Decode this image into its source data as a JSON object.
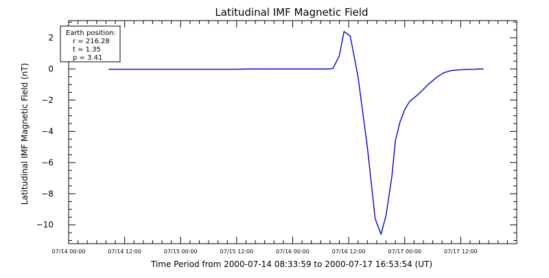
{
  "chart_data": {
    "type": "line",
    "title": "Latitudinal IMF Magnetic Field",
    "xlabel": "Time Period from 2000-07-14 08:33:59 to 2000-07-17 16:53:54 (UT)",
    "ylabel": "Latitudinal IMF Magnetic Field (nT)",
    "xlim": [
      "2000-07-14T00:00",
      "2000-07-18T00:00"
    ],
    "ylim": [
      -11.2,
      3.1
    ],
    "x_ticks": [
      {
        "t": "2000-07-14T00:00",
        "label": "07/14 00:00"
      },
      {
        "t": "2000-07-14T12:00",
        "label": "07/14 12:00"
      },
      {
        "t": "2000-07-15T00:00",
        "label": "07/15 00:00"
      },
      {
        "t": "2000-07-15T12:00",
        "label": "07/15 12:00"
      },
      {
        "t": "2000-07-16T00:00",
        "label": "07/16 00:00"
      },
      {
        "t": "2000-07-16T12:00",
        "label": "07/16 12:00"
      },
      {
        "t": "2000-07-17T00:00",
        "label": "07/17 00:00"
      },
      {
        "t": "2000-07-17T12:00",
        "label": "07/17 12:00"
      }
    ],
    "y_ticks": [
      {
        "v": 2,
        "label": "2"
      },
      {
        "v": 0,
        "label": "0"
      },
      {
        "v": -2,
        "label": "−2"
      },
      {
        "v": -4,
        "label": "−4"
      },
      {
        "v": -6,
        "label": "−6"
      },
      {
        "v": -8,
        "label": "−8"
      },
      {
        "v": -10,
        "label": "−10"
      }
    ],
    "legend": {
      "placement": "top-left",
      "lines": [
        "Earth position:",
        "r = 216.28",
        "t = 1.35",
        "p = 3.41"
      ]
    },
    "grid": false,
    "series": [
      {
        "color": "#0000cc",
        "points": [
          [
            "2000-07-14T08:33",
            -0.02
          ],
          [
            "2000-07-14T20:00",
            -0.02
          ],
          [
            "2000-07-15T12:00",
            -0.02
          ],
          [
            "2000-07-15T14:00",
            0.0
          ],
          [
            "2000-07-16T00:00",
            0.0
          ],
          [
            "2000-07-16T08:00",
            0.0
          ],
          [
            "2000-07-16T08:40",
            0.05
          ],
          [
            "2000-07-16T10:00",
            0.85
          ],
          [
            "2000-07-16T11:00",
            2.4
          ],
          [
            "2000-07-16T12:20",
            2.1
          ],
          [
            "2000-07-16T14:00",
            -0.5
          ],
          [
            "2000-07-16T16:00",
            -5.0
          ],
          [
            "2000-07-16T17:40",
            -9.6
          ],
          [
            "2000-07-16T18:55",
            -10.6
          ],
          [
            "2000-07-16T20:00",
            -9.4
          ],
          [
            "2000-07-16T21:15",
            -6.9
          ],
          [
            "2000-07-16T22:00",
            -4.6
          ],
          [
            "2000-07-16T23:00",
            -3.4
          ],
          [
            "2000-07-17T00:00",
            -2.6
          ],
          [
            "2000-07-17T01:00",
            -2.1
          ],
          [
            "2000-07-17T03:00",
            -1.6
          ],
          [
            "2000-07-17T05:00",
            -1.0
          ],
          [
            "2000-07-17T07:00",
            -0.5
          ],
          [
            "2000-07-17T08:20",
            -0.25
          ],
          [
            "2000-07-17T10:00",
            -0.1
          ],
          [
            "2000-07-17T12:00",
            -0.05
          ],
          [
            "2000-07-17T14:00",
            -0.03
          ],
          [
            "2000-07-17T15:00",
            -0.02
          ],
          [
            "2000-07-17T15:40",
            0.0
          ],
          [
            "2000-07-17T16:53",
            0.0
          ]
        ]
      }
    ]
  }
}
